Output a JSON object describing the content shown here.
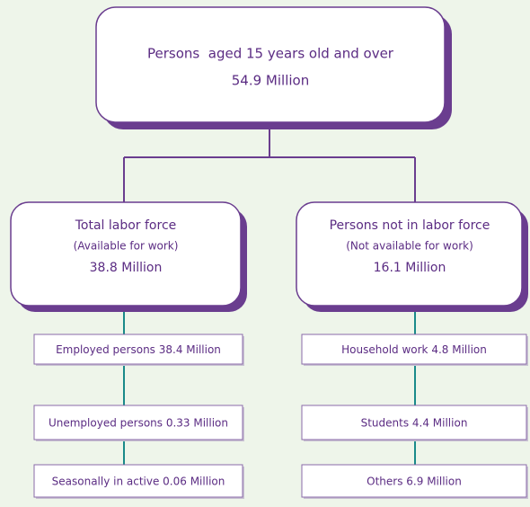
{
  "root": {
    "title": "Persons  aged 15 years old and over",
    "value": "54.9 Million"
  },
  "branches": [
    {
      "title": "Total labor force",
      "subtitle": "(Available for work)",
      "value": "38.8 Million",
      "items": [
        "Employed persons 38.4 Million",
        "Unemployed persons 0.33 Million",
        "Seasonally in active 0.06 Million"
      ]
    },
    {
      "title": "Persons not in labor force",
      "subtitle": "(Not available for work)",
      "value": "16.1 Million",
      "items": [
        "Household work 4.8 Million",
        "Students 4.4 Million",
        "Others 6.9 Million"
      ]
    }
  ]
}
